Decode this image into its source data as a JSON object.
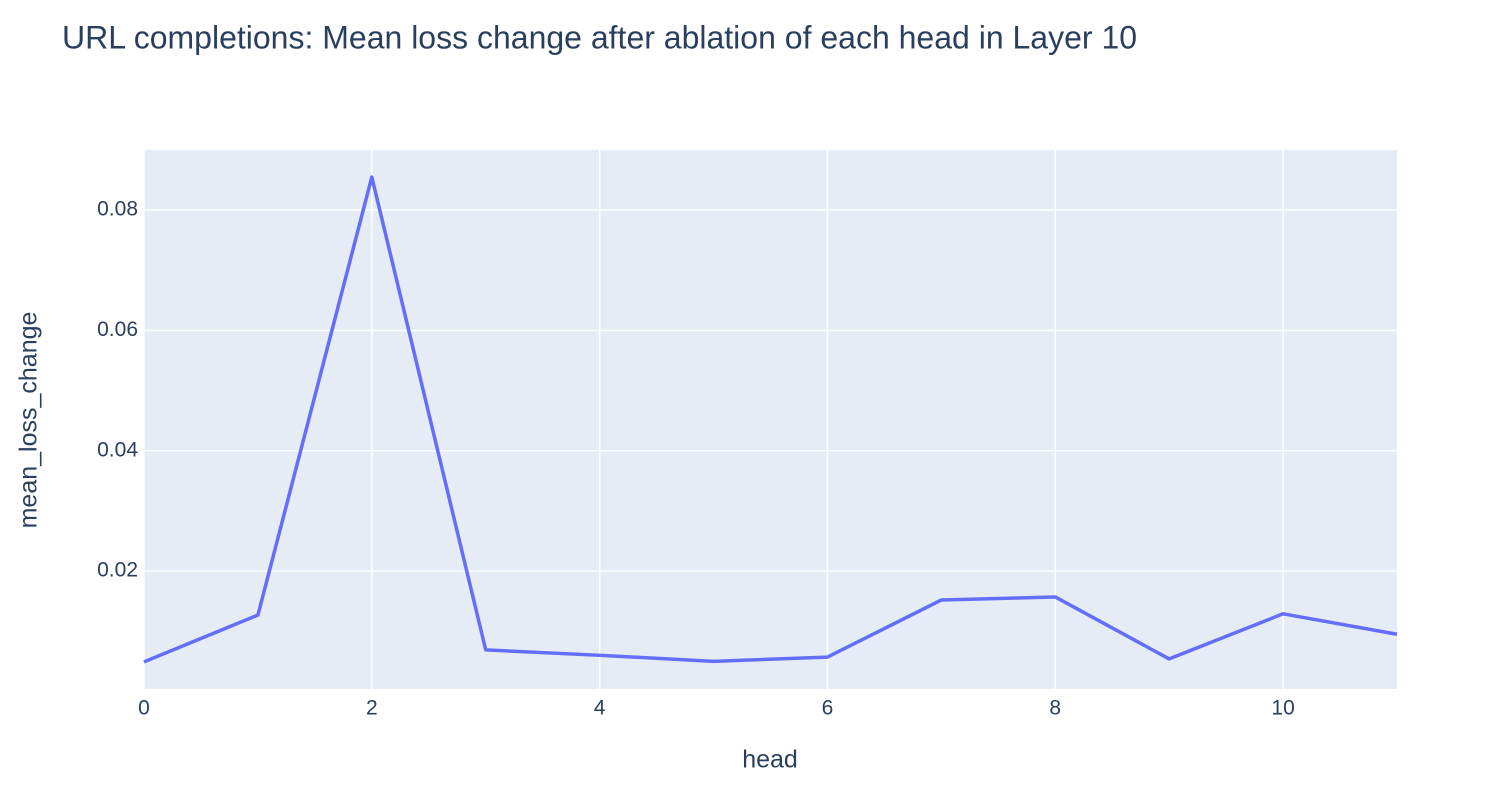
{
  "chart_data": {
    "type": "line",
    "title": "URL completions: Mean loss change after ablation of each head in Layer 10",
    "x_label": "head",
    "y_label": "mean_loss_change",
    "x": [
      0,
      1,
      2,
      3,
      4,
      5,
      6,
      7,
      8,
      9,
      10,
      11
    ],
    "series": [
      {
        "name": "mean_loss_change",
        "color": "#636efa",
        "values": [
          0.0049,
          0.0127,
          0.0855,
          0.0069,
          0.006,
          0.005,
          0.0057,
          0.0152,
          0.0157,
          0.0054,
          0.0129,
          0.0095
        ]
      }
    ],
    "xlim": [
      0,
      11
    ],
    "xticks": [
      0,
      2,
      4,
      6,
      8,
      10
    ],
    "ylim": [
      0.0004,
      0.09
    ],
    "yticks": [
      0.02,
      0.04,
      0.06,
      0.08
    ],
    "grid": true
  }
}
